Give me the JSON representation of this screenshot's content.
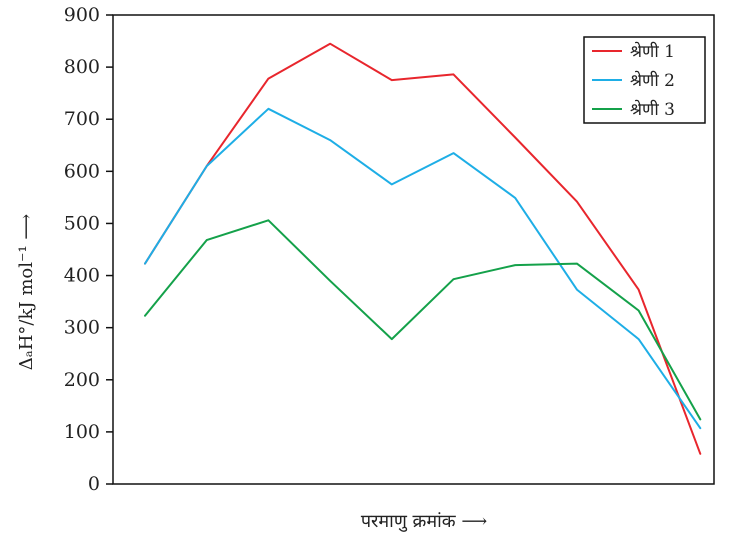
{
  "chart_data": {
    "type": "line",
    "title": "",
    "xlabel": "परमाणु क्रमांक ⟶",
    "ylabel": "ΔₐH°/kJ mol⁻¹ ⟶",
    "ylim": [
      0,
      900
    ],
    "yticks": [
      0,
      100,
      200,
      300,
      400,
      500,
      600,
      700,
      800,
      900
    ],
    "grid": false,
    "legend_position": "top-right",
    "x": [
      1,
      2,
      3,
      4,
      5,
      6,
      7,
      8,
      9,
      10
    ],
    "series": [
      {
        "name": "श्रेणी 1",
        "color": "#e8262d",
        "values": [
          423,
          610,
          778,
          845,
          775,
          786,
          665,
          542,
          373,
          58
        ]
      },
      {
        "name": "श्रेणी 2",
        "color": "#1eaee6",
        "values": [
          423,
          610,
          720,
          660,
          575,
          635,
          549,
          373,
          278,
          107
        ]
      },
      {
        "name": "श्रेणी 3",
        "color": "#14a14a",
        "values": [
          323,
          468,
          506,
          390,
          278,
          393,
          420,
          423,
          333,
          124
        ]
      }
    ]
  }
}
